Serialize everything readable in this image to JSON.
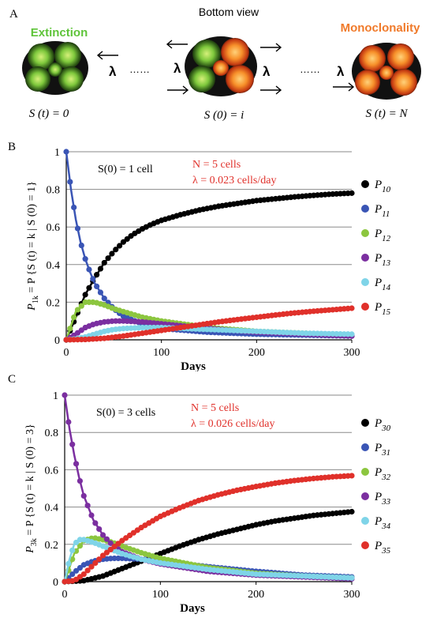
{
  "panel_a": {
    "panel_letter": "A",
    "title": "Bottom view",
    "left_label": "Extinction",
    "right_label": "Monoclonality",
    "left_state": "S (t) = 0",
    "middle_state": "S (0) = i",
    "right_state": "S (t) = N",
    "lambda": "λ",
    "dots": "……",
    "colors": {
      "extinction": "#5fc43a",
      "monoclonality": "#f07a2a"
    }
  },
  "chart_data": [
    {
      "type": "scatter",
      "panel_letter": "B",
      "xlabel": "Days",
      "ylabel": "P1k = P {S (t) = k | S (0) = 1}",
      "ylabel_parts": {
        "p": "P",
        "sub": "1k",
        "rest": " = P {S (t) = k | S (0) = 1}"
      },
      "xlim": [
        0,
        300
      ],
      "ylim": [
        0,
        1
      ],
      "xticks": [
        "0",
        "100",
        "200",
        "300"
      ],
      "yticks": [
        "0",
        "0.2",
        "0.4",
        "0.6",
        "0.8",
        "1"
      ],
      "grid": true,
      "legend_position": "right",
      "annotation_start": "S(0) = 1 cell",
      "annotation_n": "N = 5 cells",
      "annotation_lambda": "λ = 0.023 cells/day",
      "series": [
        {
          "name": "P10",
          "color": "#000000",
          "points": [
            [
              0,
              0
            ],
            [
              10,
              0.12
            ],
            [
              20,
              0.24
            ],
            [
              30,
              0.33
            ],
            [
              40,
              0.41
            ],
            [
              50,
              0.47
            ],
            [
              60,
              0.52
            ],
            [
              70,
              0.56
            ],
            [
              80,
              0.59
            ],
            [
              90,
              0.615
            ],
            [
              100,
              0.635
            ],
            [
              120,
              0.665
            ],
            [
              140,
              0.69
            ],
            [
              160,
              0.71
            ],
            [
              180,
              0.725
            ],
            [
              200,
              0.74
            ],
            [
              220,
              0.75
            ],
            [
              240,
              0.76
            ],
            [
              260,
              0.768
            ],
            [
              280,
              0.775
            ],
            [
              300,
              0.78
            ]
          ]
        },
        {
          "name": "P11",
          "color": "#3a55b5",
          "points": [
            [
              0,
              1
            ],
            [
              5,
              0.8
            ],
            [
              10,
              0.64
            ],
            [
              15,
              0.52
            ],
            [
              20,
              0.43
            ],
            [
              25,
              0.36
            ],
            [
              30,
              0.3
            ],
            [
              40,
              0.22
            ],
            [
              50,
              0.165
            ],
            [
              60,
              0.125
            ],
            [
              80,
              0.085
            ],
            [
              100,
              0.06
            ],
            [
              150,
              0.04
            ],
            [
              200,
              0.03
            ],
            [
              250,
              0.025
            ],
            [
              300,
              0.02
            ]
          ]
        },
        {
          "name": "P12",
          "color": "#8cc63f",
          "points": [
            [
              0,
              0
            ],
            [
              10,
              0.15
            ],
            [
              20,
              0.2
            ],
            [
              30,
              0.2
            ],
            [
              40,
              0.185
            ],
            [
              50,
              0.165
            ],
            [
              60,
              0.15
            ],
            [
              80,
              0.12
            ],
            [
              100,
              0.1
            ],
            [
              150,
              0.065
            ],
            [
              200,
              0.045
            ],
            [
              250,
              0.035
            ],
            [
              300,
              0.025
            ]
          ]
        },
        {
          "name": "P13",
          "color": "#7b2fa0",
          "points": [
            [
              0,
              0
            ],
            [
              10,
              0.03
            ],
            [
              20,
              0.065
            ],
            [
              30,
              0.085
            ],
            [
              40,
              0.095
            ],
            [
              50,
              0.1
            ],
            [
              60,
              0.1
            ],
            [
              80,
              0.095
            ],
            [
              100,
              0.085
            ],
            [
              150,
              0.06
            ],
            [
              200,
              0.04
            ],
            [
              250,
              0.03
            ],
            [
              300,
              0.02
            ]
          ]
        },
        {
          "name": "P14",
          "color": "#7fd4e8",
          "points": [
            [
              0,
              0
            ],
            [
              10,
              0.005
            ],
            [
              20,
              0.015
            ],
            [
              30,
              0.03
            ],
            [
              40,
              0.045
            ],
            [
              50,
              0.055
            ],
            [
              60,
              0.06
            ],
            [
              80,
              0.065
            ],
            [
              100,
              0.065
            ],
            [
              150,
              0.055
            ],
            [
              200,
              0.045
            ],
            [
              250,
              0.035
            ],
            [
              300,
              0.03
            ]
          ]
        },
        {
          "name": "P15",
          "color": "#e0302a",
          "points": [
            [
              0,
              0
            ],
            [
              20,
              0.002
            ],
            [
              40,
              0.008
            ],
            [
              60,
              0.02
            ],
            [
              80,
              0.035
            ],
            [
              100,
              0.05
            ],
            [
              120,
              0.065
            ],
            [
              140,
              0.08
            ],
            [
              160,
              0.095
            ],
            [
              180,
              0.108
            ],
            [
              200,
              0.12
            ],
            [
              220,
              0.132
            ],
            [
              240,
              0.143
            ],
            [
              260,
              0.152
            ],
            [
              280,
              0.16
            ],
            [
              300,
              0.168
            ]
          ]
        }
      ]
    },
    {
      "type": "scatter",
      "panel_letter": "C",
      "xlabel": "Days",
      "ylabel": "P3k = P {S (t) = k | S (0) = 3}",
      "ylabel_parts": {
        "p": "P",
        "sub": "3k",
        "rest": " = P {S (t) = k | S (0) = 3}"
      },
      "xlim": [
        0,
        300
      ],
      "ylim": [
        0,
        1
      ],
      "xticks": [
        "0",
        "100",
        "200",
        "300"
      ],
      "yticks": [
        "0",
        "0.2",
        "0.4",
        "0.6",
        "0.8",
        "1"
      ],
      "grid": true,
      "legend_position": "right",
      "annotation_start": "S(0) = 3 cells",
      "annotation_n": "N = 5 cells",
      "annotation_lambda": "λ = 0.026 cells/day",
      "series": [
        {
          "name": "P30",
          "color": "#000000",
          "points": [
            [
              0,
              0
            ],
            [
              20,
              0.005
            ],
            [
              40,
              0.03
            ],
            [
              60,
              0.07
            ],
            [
              80,
              0.11
            ],
            [
              100,
              0.15
            ],
            [
              120,
              0.19
            ],
            [
              140,
              0.225
            ],
            [
              160,
              0.255
            ],
            [
              180,
              0.28
            ],
            [
              200,
              0.305
            ],
            [
              220,
              0.325
            ],
            [
              240,
              0.34
            ],
            [
              260,
              0.355
            ],
            [
              280,
              0.365
            ],
            [
              300,
              0.375
            ]
          ]
        },
        {
          "name": "P31",
          "color": "#3a55b5",
          "points": [
            [
              0,
              0
            ],
            [
              10,
              0.05
            ],
            [
              20,
              0.09
            ],
            [
              30,
              0.11
            ],
            [
              40,
              0.12
            ],
            [
              50,
              0.125
            ],
            [
              60,
              0.125
            ],
            [
              80,
              0.12
            ],
            [
              100,
              0.11
            ],
            [
              150,
              0.08
            ],
            [
              200,
              0.055
            ],
            [
              250,
              0.035
            ],
            [
              300,
              0.025
            ]
          ]
        },
        {
          "name": "P32",
          "color": "#8cc63f",
          "points": [
            [
              0,
              0
            ],
            [
              10,
              0.15
            ],
            [
              20,
              0.22
            ],
            [
              30,
              0.235
            ],
            [
              40,
              0.225
            ],
            [
              50,
              0.21
            ],
            [
              60,
              0.19
            ],
            [
              80,
              0.155
            ],
            [
              100,
              0.125
            ],
            [
              150,
              0.075
            ],
            [
              200,
              0.045
            ],
            [
              250,
              0.03
            ],
            [
              300,
              0.02
            ]
          ]
        },
        {
          "name": "P33",
          "color": "#7b2fa0",
          "points": [
            [
              0,
              1
            ],
            [
              5,
              0.82
            ],
            [
              10,
              0.68
            ],
            [
              15,
              0.56
            ],
            [
              20,
              0.46
            ],
            [
              30,
              0.33
            ],
            [
              40,
              0.25
            ],
            [
              50,
              0.195
            ],
            [
              60,
              0.16
            ],
            [
              80,
              0.12
            ],
            [
              100,
              0.095
            ],
            [
              150,
              0.055
            ],
            [
              200,
              0.035
            ],
            [
              250,
              0.025
            ],
            [
              300,
              0.015
            ]
          ]
        },
        {
          "name": "P34",
          "color": "#7fd4e8",
          "points": [
            [
              0,
              0
            ],
            [
              5,
              0.12
            ],
            [
              10,
              0.2
            ],
            [
              15,
              0.225
            ],
            [
              20,
              0.225
            ],
            [
              30,
              0.21
            ],
            [
              40,
              0.19
            ],
            [
              50,
              0.17
            ],
            [
              60,
              0.15
            ],
            [
              80,
              0.12
            ],
            [
              100,
              0.1
            ],
            [
              150,
              0.065
            ],
            [
              200,
              0.04
            ],
            [
              250,
              0.03
            ],
            [
              300,
              0.02
            ]
          ]
        },
        {
          "name": "P35",
          "color": "#e0302a",
          "points": [
            [
              0,
              0
            ],
            [
              10,
              0.005
            ],
            [
              20,
              0.04
            ],
            [
              30,
              0.09
            ],
            [
              40,
              0.14
            ],
            [
              50,
              0.18
            ],
            [
              60,
              0.22
            ],
            [
              80,
              0.29
            ],
            [
              100,
              0.35
            ],
            [
              120,
              0.395
            ],
            [
              140,
              0.435
            ],
            [
              160,
              0.465
            ],
            [
              180,
              0.49
            ],
            [
              200,
              0.51
            ],
            [
              220,
              0.528
            ],
            [
              240,
              0.542
            ],
            [
              260,
              0.553
            ],
            [
              280,
              0.562
            ],
            [
              300,
              0.568
            ]
          ]
        }
      ]
    }
  ]
}
